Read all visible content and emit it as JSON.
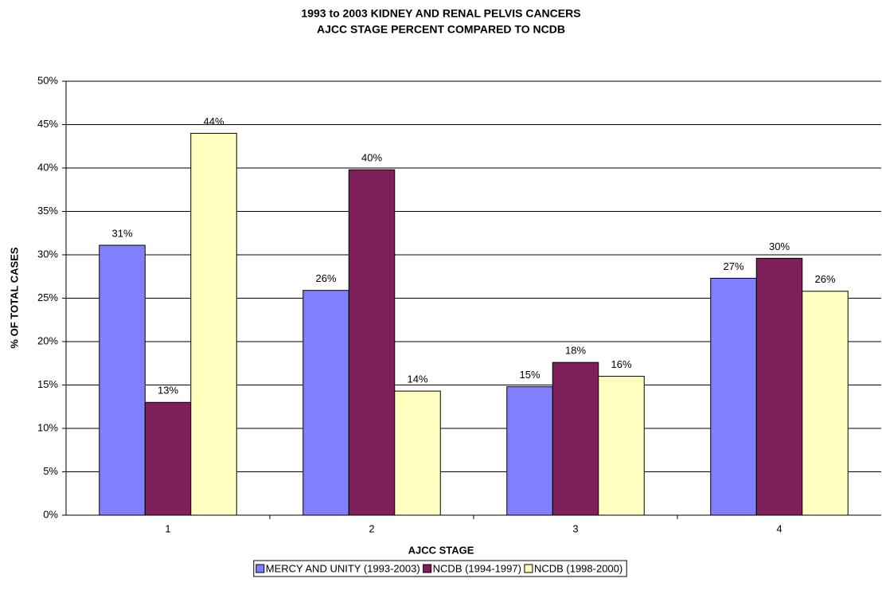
{
  "chart_data": {
    "type": "bar",
    "title": [
      "1993 to 2003 KIDNEY AND RENAL PELVIS CANCERS",
      "AJCC STAGE PERCENT COMPARED TO NCDB"
    ],
    "x_label": "AJCC STAGE",
    "y_label": "% OF TOTAL CASES",
    "categories": [
      "1",
      "2",
      "3",
      "4"
    ],
    "series": [
      {
        "name": "MERCY AND UNITY (1993-2003)",
        "color": "#8080ff",
        "values": [
          31.1,
          25.9,
          14.8,
          27.3
        ],
        "value_labels": [
          "31%",
          "26%",
          "15%",
          "27%"
        ]
      },
      {
        "name": "NCDB (1994-1997)",
        "color": "#7f1f5a",
        "values": [
          13.0,
          39.8,
          17.6,
          29.6
        ],
        "value_labels": [
          "13%",
          "40%",
          "18%",
          "30%"
        ]
      },
      {
        "name": "NCDB (1998-2000)",
        "color": "#ffffc0",
        "values": [
          44.0,
          14.3,
          16.0,
          25.8
        ],
        "value_labels": [
          "44%",
          "14%",
          "16%",
          "26%"
        ]
      }
    ],
    "ylim": [
      0,
      50
    ],
    "yticks": [
      {
        "value": 0,
        "label": "0%"
      },
      {
        "value": 5,
        "label": "5%"
      },
      {
        "value": 10,
        "label": "10%"
      },
      {
        "value": 15,
        "label": "15%"
      },
      {
        "value": 20,
        "label": "20%"
      },
      {
        "value": 25,
        "label": "25%"
      },
      {
        "value": 30,
        "label": "30%"
      },
      {
        "value": 35,
        "label": "35%"
      },
      {
        "value": 40,
        "label": "40%"
      },
      {
        "value": 45,
        "label": "45%"
      },
      {
        "value": 50,
        "label": "50%"
      }
    ],
    "grid": true,
    "legend": "bottom"
  }
}
